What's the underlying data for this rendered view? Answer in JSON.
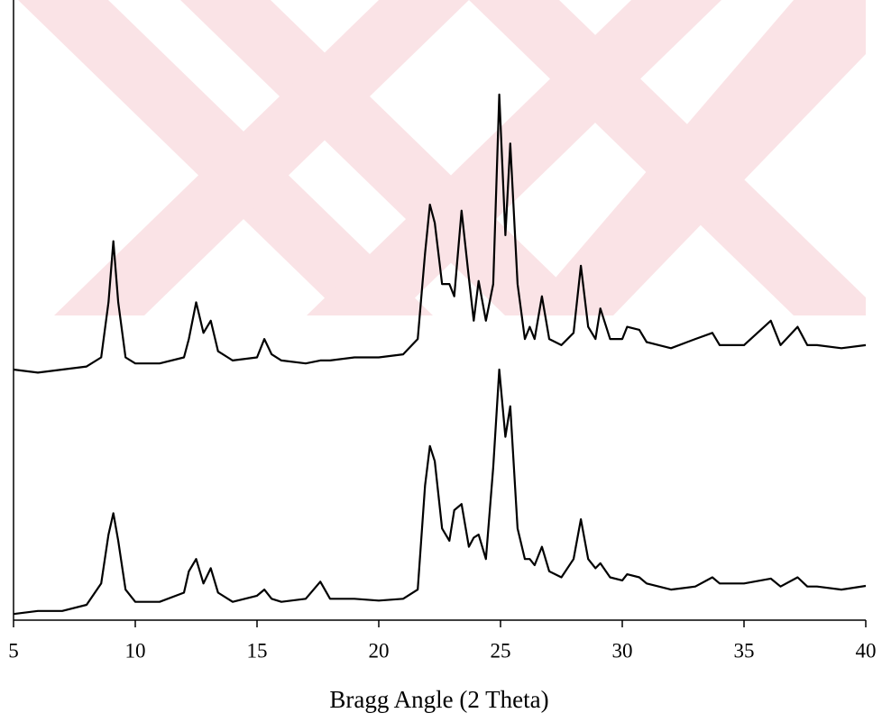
{
  "chart_data": {
    "type": "line",
    "x_label": "Bragg Angle (2 Theta)",
    "x": [
      5,
      6,
      7,
      8,
      8.6,
      8.9,
      9.1,
      9.3,
      9.6,
      10,
      11,
      12,
      12.2,
      12.5,
      12.8,
      13.1,
      13.4,
      14,
      15,
      15.3,
      15.6,
      16,
      17,
      17.6,
      18,
      19,
      20,
      21,
      21.6,
      21.9,
      22.1,
      22.3,
      22.6,
      22.9,
      23.1,
      23.4,
      23.7,
      23.9,
      24.1,
      24.4,
      24.7,
      24.95,
      25.2,
      25.4,
      25.7,
      26,
      26.2,
      26.4,
      26.7,
      27,
      27.5,
      28,
      28.3,
      28.6,
      28.9,
      29.1,
      29.5,
      30,
      30.2,
      30.7,
      31,
      32,
      33,
      33.7,
      34,
      35,
      36.1,
      36.5,
      37.2,
      37.6,
      38,
      39,
      40
    ],
    "series": [
      {
        "color": "#000000",
        "values": [
          41,
          40.5,
          41,
          41.5,
          43,
          52,
          62,
          52,
          43,
          42,
          42,
          43,
          46,
          52,
          47,
          49,
          44,
          42.5,
          43,
          46,
          43.5,
          42.5,
          42,
          42.5,
          42.5,
          43,
          43,
          43.5,
          46,
          60,
          68,
          65,
          55,
          55,
          53,
          67,
          56,
          49,
          55.5,
          49,
          55,
          86,
          63,
          78,
          55,
          46,
          48,
          46,
          53,
          46,
          45,
          47,
          58,
          48,
          46,
          51,
          46,
          46,
          48,
          47.5,
          45.5,
          44.5,
          46,
          47,
          45,
          45,
          49,
          45,
          48,
          45,
          45,
          44.5,
          45
        ]
      },
      {
        "color": "#000000",
        "values": [
          1,
          1.5,
          1.5,
          2.5,
          6,
          14,
          17.5,
          13,
          5,
          3,
          3,
          4.5,
          8,
          10,
          6,
          8.5,
          4.5,
          3,
          4,
          5,
          3.5,
          3,
          3.5,
          6.3,
          3.5,
          3.5,
          3.2,
          3.5,
          5,
          22,
          28.5,
          26,
          15,
          13,
          18,
          19,
          12,
          13.5,
          14,
          10,
          25,
          41,
          30,
          35,
          15,
          10,
          10,
          9,
          12,
          8,
          7,
          10,
          16.5,
          10,
          8.5,
          9.3,
          7,
          6.5,
          7.5,
          7,
          6,
          5,
          5.5,
          7,
          6,
          6,
          6.8,
          5.5,
          7,
          5.5,
          5.5,
          5,
          5.6
        ]
      }
    ],
    "xlim": [
      5,
      40
    ],
    "xticks": [
      5,
      10,
      15,
      20,
      25,
      30,
      35,
      40
    ],
    "ylim": [
      0,
      100
    ]
  }
}
